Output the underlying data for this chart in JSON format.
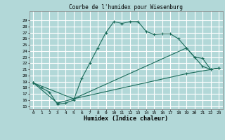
{
  "title": "Courbe de l'humidex pour Wiesenburg",
  "xlabel": "Humidex (Indice chaleur)",
  "bg_color": "#b2d8d8",
  "grid_color": "#ffffff",
  "line_color": "#1a6b5a",
  "xlim": [
    -0.5,
    23.5
  ],
  "ylim": [
    14.5,
    30.5
  ],
  "xticks": [
    0,
    1,
    2,
    3,
    4,
    5,
    6,
    7,
    8,
    9,
    10,
    11,
    12,
    13,
    14,
    15,
    16,
    17,
    18,
    19,
    20,
    21,
    22,
    23
  ],
  "yticks": [
    15,
    16,
    17,
    18,
    19,
    20,
    21,
    22,
    23,
    24,
    25,
    26,
    27,
    28,
    29
  ],
  "line1_x": [
    0,
    1,
    2,
    3,
    4,
    5,
    6,
    7,
    8,
    9,
    10,
    11,
    12,
    13,
    14,
    15,
    16,
    17,
    18,
    19,
    20,
    21,
    22,
    23
  ],
  "line1_y": [
    18.8,
    18.0,
    17.3,
    15.3,
    15.5,
    16.0,
    19.5,
    22.0,
    24.5,
    27.0,
    28.8,
    28.5,
    28.8,
    28.8,
    27.2,
    26.7,
    26.8,
    26.8,
    26.0,
    24.5,
    23.0,
    21.5,
    21.0,
    21.2
  ],
  "line2_x": [
    0,
    5,
    19,
    20,
    21,
    22,
    23
  ],
  "line2_y": [
    18.8,
    16.2,
    24.5,
    23.0,
    22.8,
    21.0,
    21.2
  ],
  "line3_x": [
    0,
    3,
    5,
    19,
    23
  ],
  "line3_y": [
    18.8,
    15.5,
    16.2,
    20.3,
    21.2
  ]
}
